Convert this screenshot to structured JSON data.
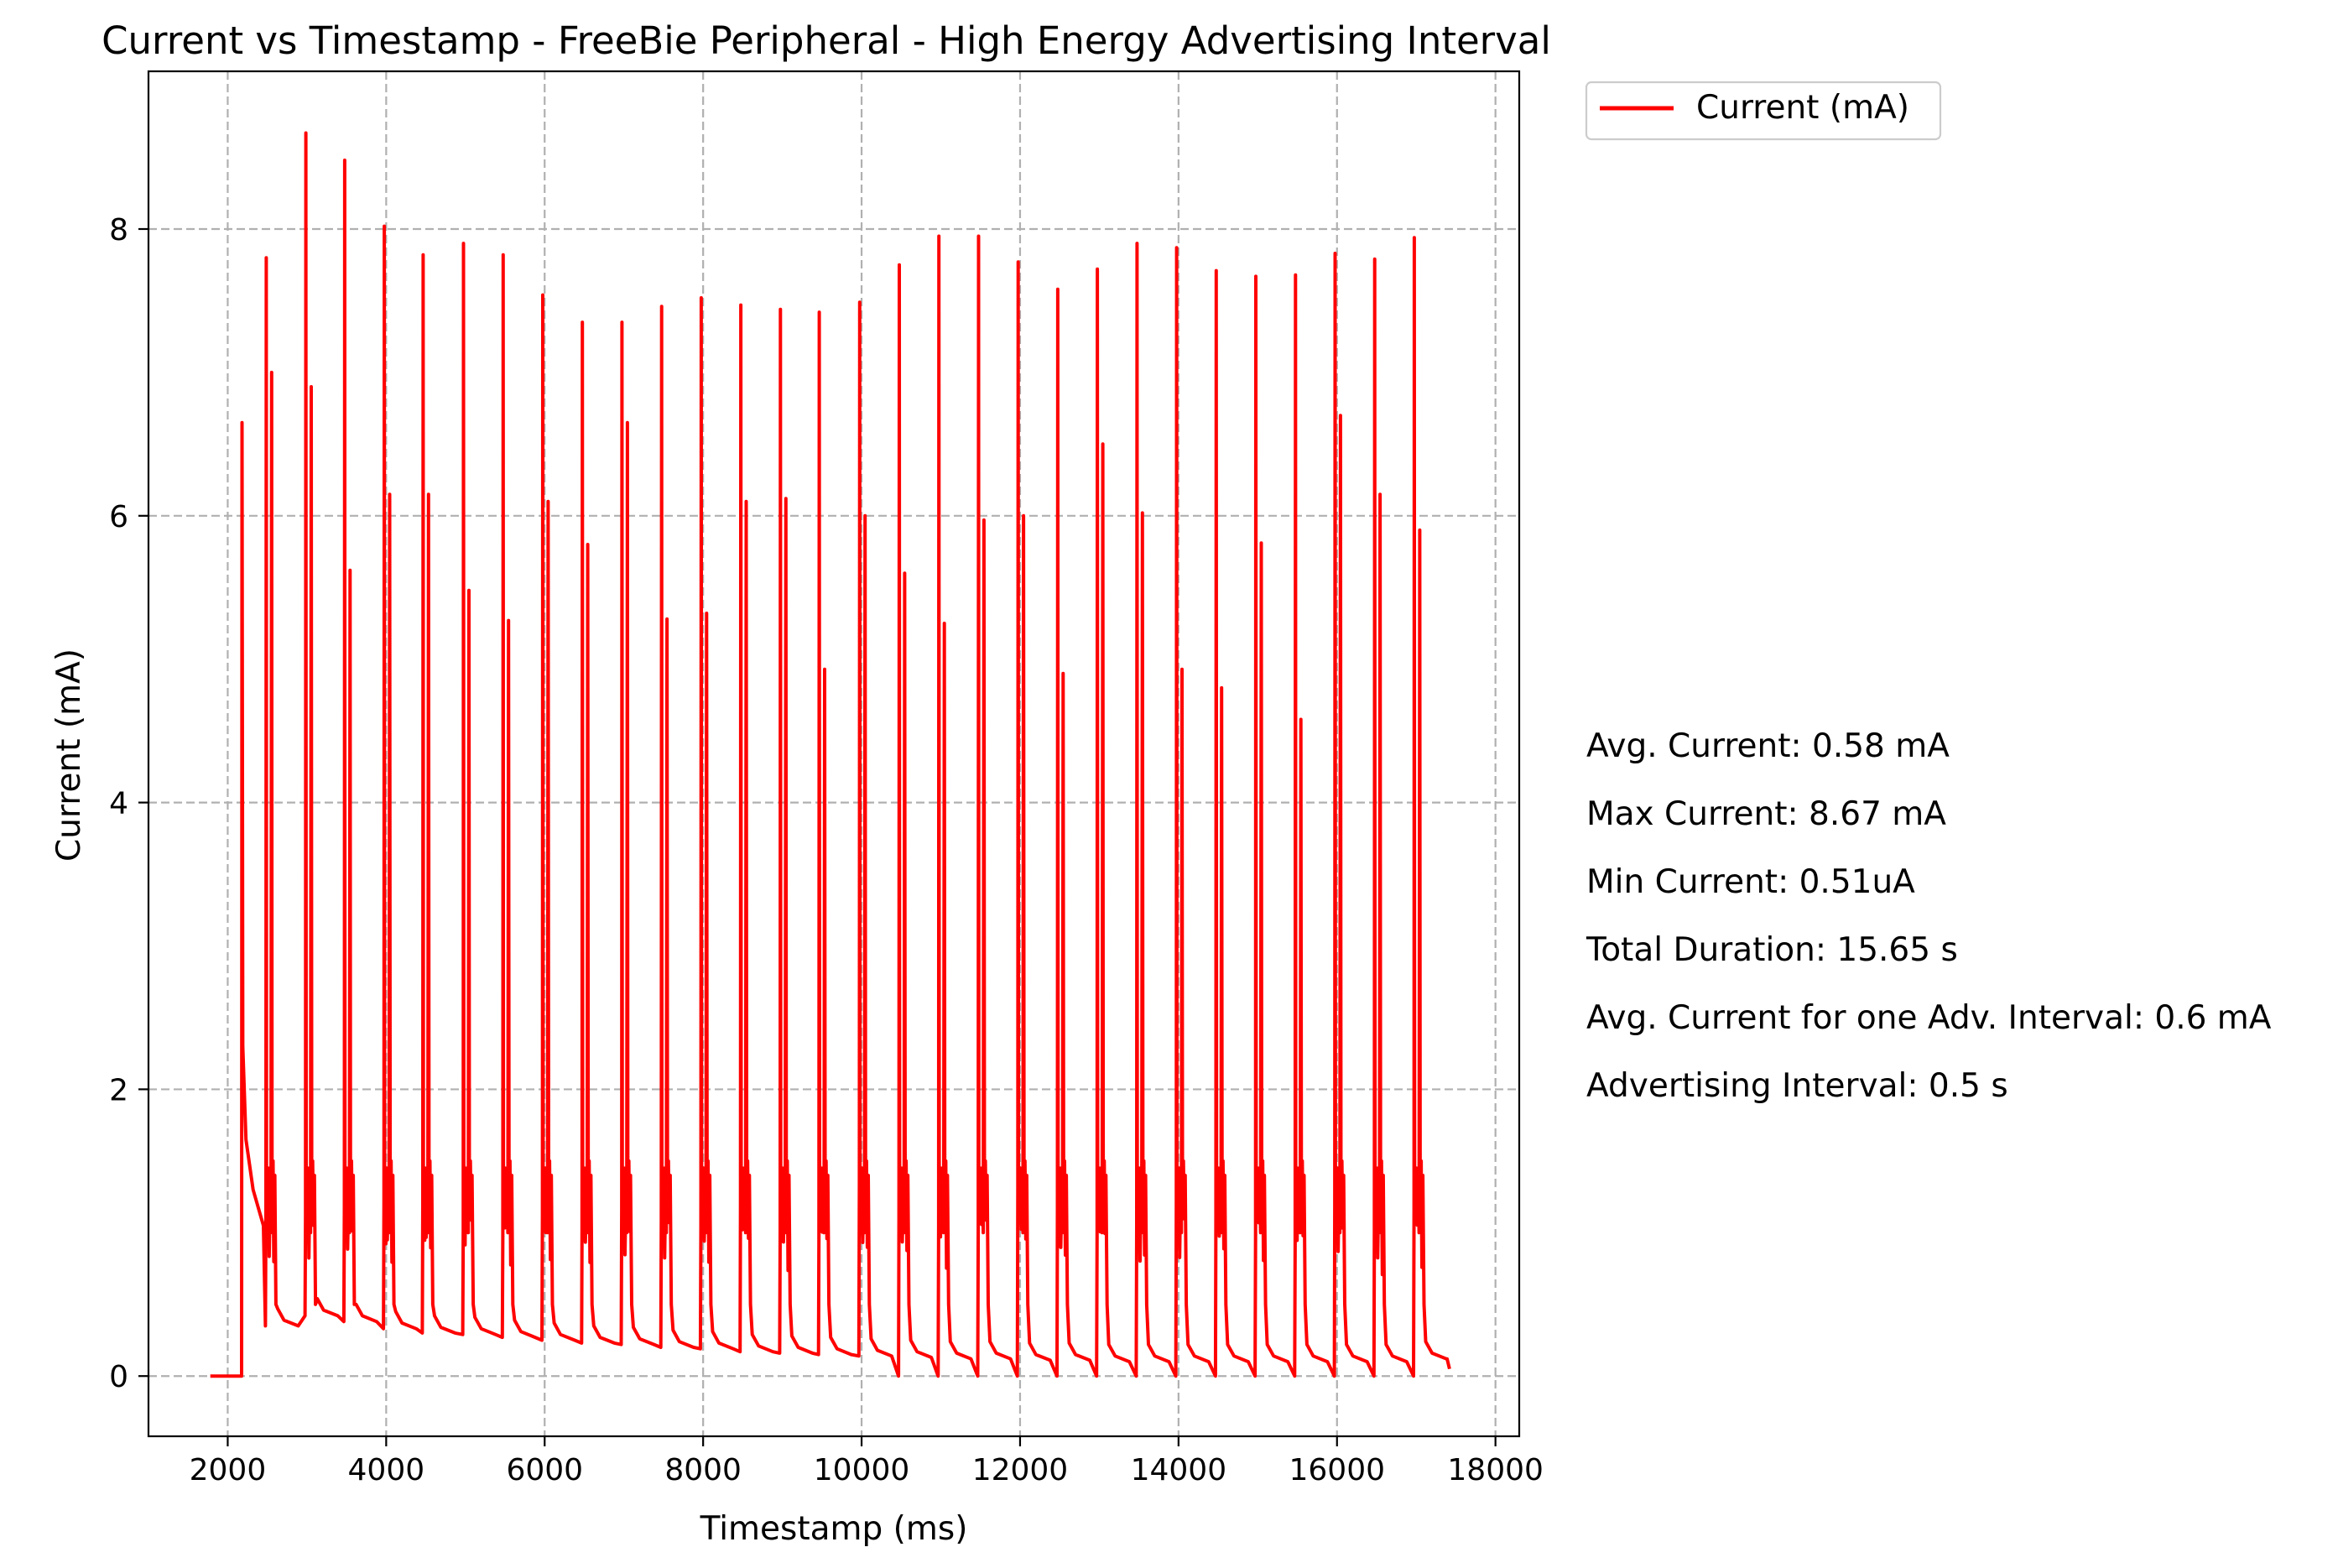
{
  "chart_data": {
    "type": "line",
    "title": "Current vs Timestamp - FreeBie Peripheral - High Energy Advertising Interval",
    "xlabel": "Timestamp (ms)",
    "ylabel": "Current (mA)",
    "xlim": [
      1000,
      18300
    ],
    "ylim": [
      -0.42,
      9.1
    ],
    "xticks": [
      2000,
      4000,
      6000,
      8000,
      10000,
      12000,
      14000,
      16000,
      18000
    ],
    "yticks": [
      0,
      2,
      4,
      6,
      8
    ],
    "grid": true,
    "legend_position": "outside-top-right",
    "colors": {
      "series": "#ff0000"
    },
    "series": [
      {
        "name": "Current (mA)",
        "color": "#ff0000"
      }
    ],
    "signal": {
      "flat_start": [
        1780,
        2170
      ],
      "initial_spike": {
        "x": 2180,
        "y": 6.65
      },
      "initial_decay": [
        [
          2190,
          2.3
        ],
        [
          2230,
          1.65
        ],
        [
          2320,
          1.3
        ],
        [
          2450,
          1.05
        ]
      ],
      "bursts": [
        {
          "x": 2490,
          "main": 7.8,
          "secondary": 7.0,
          "baseline": 0.35
        },
        {
          "x": 2990,
          "main": 8.67,
          "secondary": 6.9,
          "baseline": 0.42
        },
        {
          "x": 3480,
          "main": 8.48,
          "secondary": 5.62,
          "baseline": 0.38
        },
        {
          "x": 3980,
          "main": 8.02,
          "secondary": 6.15,
          "baseline": 0.33
        },
        {
          "x": 4470,
          "main": 7.82,
          "secondary": 6.15,
          "baseline": 0.3
        },
        {
          "x": 4980,
          "main": 7.9,
          "secondary": 5.48,
          "baseline": 0.29
        },
        {
          "x": 5480,
          "main": 7.82,
          "secondary": 5.27,
          "baseline": 0.27
        },
        {
          "x": 5980,
          "main": 7.54,
          "secondary": 6.1,
          "baseline": 0.25
        },
        {
          "x": 6480,
          "main": 7.35,
          "secondary": 5.8,
          "baseline": 0.23
        },
        {
          "x": 6980,
          "main": 7.35,
          "secondary": 6.65,
          "baseline": 0.22
        },
        {
          "x": 7480,
          "main": 7.46,
          "secondary": 5.28,
          "baseline": 0.2
        },
        {
          "x": 7980,
          "main": 7.52,
          "secondary": 5.32,
          "baseline": 0.19
        },
        {
          "x": 8480,
          "main": 7.47,
          "secondary": 6.1,
          "baseline": 0.17
        },
        {
          "x": 8980,
          "main": 7.44,
          "secondary": 6.12,
          "baseline": 0.16
        },
        {
          "x": 9470,
          "main": 7.42,
          "secondary": 4.93,
          "baseline": 0.15
        },
        {
          "x": 9980,
          "main": 7.49,
          "secondary": 6.0,
          "baseline": 0.14
        },
        {
          "x": 10480,
          "main": 7.75,
          "secondary": 5.6,
          "baseline": 0.13
        },
        {
          "x": 10980,
          "main": 7.95,
          "secondary": 5.25,
          "baseline": 0.12
        },
        {
          "x": 11480,
          "main": 7.95,
          "secondary": 5.97,
          "baseline": 0.12
        },
        {
          "x": 11980,
          "main": 7.77,
          "secondary": 6.0,
          "baseline": 0.11
        },
        {
          "x": 12480,
          "main": 7.58,
          "secondary": 4.9,
          "baseline": 0.11
        },
        {
          "x": 12980,
          "main": 7.72,
          "secondary": 6.5,
          "baseline": 0.1
        },
        {
          "x": 13480,
          "main": 7.9,
          "secondary": 6.02,
          "baseline": 0.1
        },
        {
          "x": 13980,
          "main": 7.87,
          "secondary": 4.93,
          "baseline": 0.1
        },
        {
          "x": 14480,
          "main": 7.71,
          "secondary": 4.8,
          "baseline": 0.1
        },
        {
          "x": 14980,
          "main": 7.67,
          "secondary": 5.81,
          "baseline": 0.1
        },
        {
          "x": 15480,
          "main": 7.68,
          "secondary": 4.58,
          "baseline": 0.1
        },
        {
          "x": 15980,
          "main": 7.83,
          "secondary": 6.7,
          "baseline": 0.1
        },
        {
          "x": 16480,
          "main": 7.79,
          "secondary": 6.15,
          "baseline": 0.1
        },
        {
          "x": 16980,
          "main": 7.94,
          "secondary": 5.9,
          "baseline": 0.12
        }
      ],
      "end": [
        17420,
        0.05
      ]
    }
  },
  "stats": [
    "Avg. Current: 0.58 mA",
    "Max Current: 8.67 mA",
    "Min Current: 0.51uA",
    "Total Duration: 15.65 s",
    "Avg. Current for one Adv. Interval: 0.6 mA",
    "Advertising Interval: 0.5 s"
  ]
}
